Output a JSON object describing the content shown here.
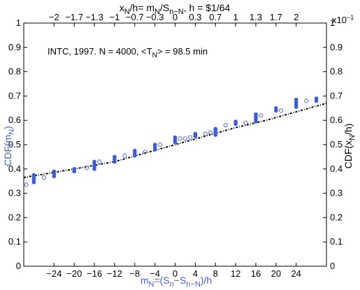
{
  "chart_data": {
    "type": "scatter",
    "annotation": {
      "before": "INTC, 1997. N = 4000, <T",
      "sub": "N",
      "after": "> = 98.5 min"
    },
    "top_xlabel": {
      "p1": "x",
      "s1": "N",
      "p2": "/h= m",
      "s2": "N",
      "p3": "/S",
      "s3": "n−N",
      "p4": ", h = $1/64"
    },
    "top_ticklabels": [
      "−2",
      "−1.7",
      "−1.3",
      "−1",
      "−0.7",
      "−0.3",
      "0",
      "0.3",
      "0.7",
      "1",
      "1.3",
      "1.7",
      "2"
    ],
    "top_multiplier": "x10",
    "top_multiplier_exp": "−1",
    "bottom_xlabel": {
      "p1": "m",
      "s1": "N",
      "p2": "=(S",
      "s2": "n",
      "p3": "−S",
      "s3": "n−N",
      "p4": ")/h"
    },
    "left_ylabel": {
      "p1": "CDF(m",
      "s1": "N",
      "p2": ")"
    },
    "right_ylabel": {
      "p1": "CDF(x",
      "s1": "N",
      "p2": "/h)"
    },
    "xlim": [
      -30,
      30
    ],
    "ylim": [
      0,
      1
    ],
    "x_ticks": [
      -24,
      -20,
      -16,
      -12,
      -8,
      -4,
      0,
      4,
      8,
      12,
      16,
      20,
      24
    ],
    "y_ticks": [
      0,
      0.1,
      0.2,
      0.3,
      0.4,
      0.5,
      0.6,
      0.7,
      0.8,
      0.9,
      1
    ],
    "y_ticklabels": [
      "0",
      "0.1",
      "0.2",
      "0.3",
      "0.4",
      "0.5",
      "0.6",
      "0.7",
      "0.8",
      "0.9",
      "1"
    ],
    "filled_series": {
      "x": [
        -28,
        -28,
        -28,
        -28,
        -24,
        -24,
        -24,
        -20,
        -20,
        -16,
        -16,
        -16,
        -16,
        -12,
        -12,
        -12,
        -8,
        -8,
        -8,
        -4,
        -4,
        -4,
        0,
        0,
        0,
        4,
        4,
        4,
        8,
        8,
        8,
        8,
        12,
        12,
        16,
        16,
        16,
        16,
        20,
        20,
        24,
        24,
        24,
        24,
        28,
        28
      ],
      "y": [
        0.345,
        0.355,
        0.365,
        0.375,
        0.37,
        0.38,
        0.39,
        0.39,
        0.4,
        0.4,
        0.41,
        0.42,
        0.43,
        0.43,
        0.44,
        0.45,
        0.455,
        0.465,
        0.475,
        0.48,
        0.49,
        0.5,
        0.51,
        0.52,
        0.53,
        0.535,
        0.54,
        0.545,
        0.54,
        0.55,
        0.56,
        0.565,
        0.585,
        0.595,
        0.595,
        0.605,
        0.615,
        0.625,
        0.64,
        0.65,
        0.655,
        0.665,
        0.675,
        0.685,
        0.68,
        0.69
      ]
    },
    "open_series": {
      "x": [
        -29.5,
        -26,
        -17.5,
        -15,
        -10,
        -6,
        -3,
        1,
        2,
        3,
        6,
        7,
        10,
        14,
        17,
        21,
        26
      ],
      "y": [
        0.335,
        0.365,
        0.405,
        0.43,
        0.455,
        0.47,
        0.5,
        0.525,
        0.525,
        0.53,
        0.545,
        0.55,
        0.58,
        0.59,
        0.62,
        0.64,
        0.68
      ]
    },
    "dashed_line": {
      "x": [
        -30,
        -20,
        -12,
        -6,
        0,
        6,
        12,
        18,
        24,
        30
      ],
      "y": [
        0.365,
        0.4,
        0.43,
        0.465,
        0.5,
        0.535,
        0.57,
        0.6,
        0.635,
        0.67
      ]
    },
    "grid": false,
    "colors": {
      "axis": "#000000",
      "filled_markers": "#3b5bdb",
      "open_markers": "#3b5bdb",
      "dashed_line": "#000000",
      "bottom_left_labels": "#4060e0"
    }
  }
}
